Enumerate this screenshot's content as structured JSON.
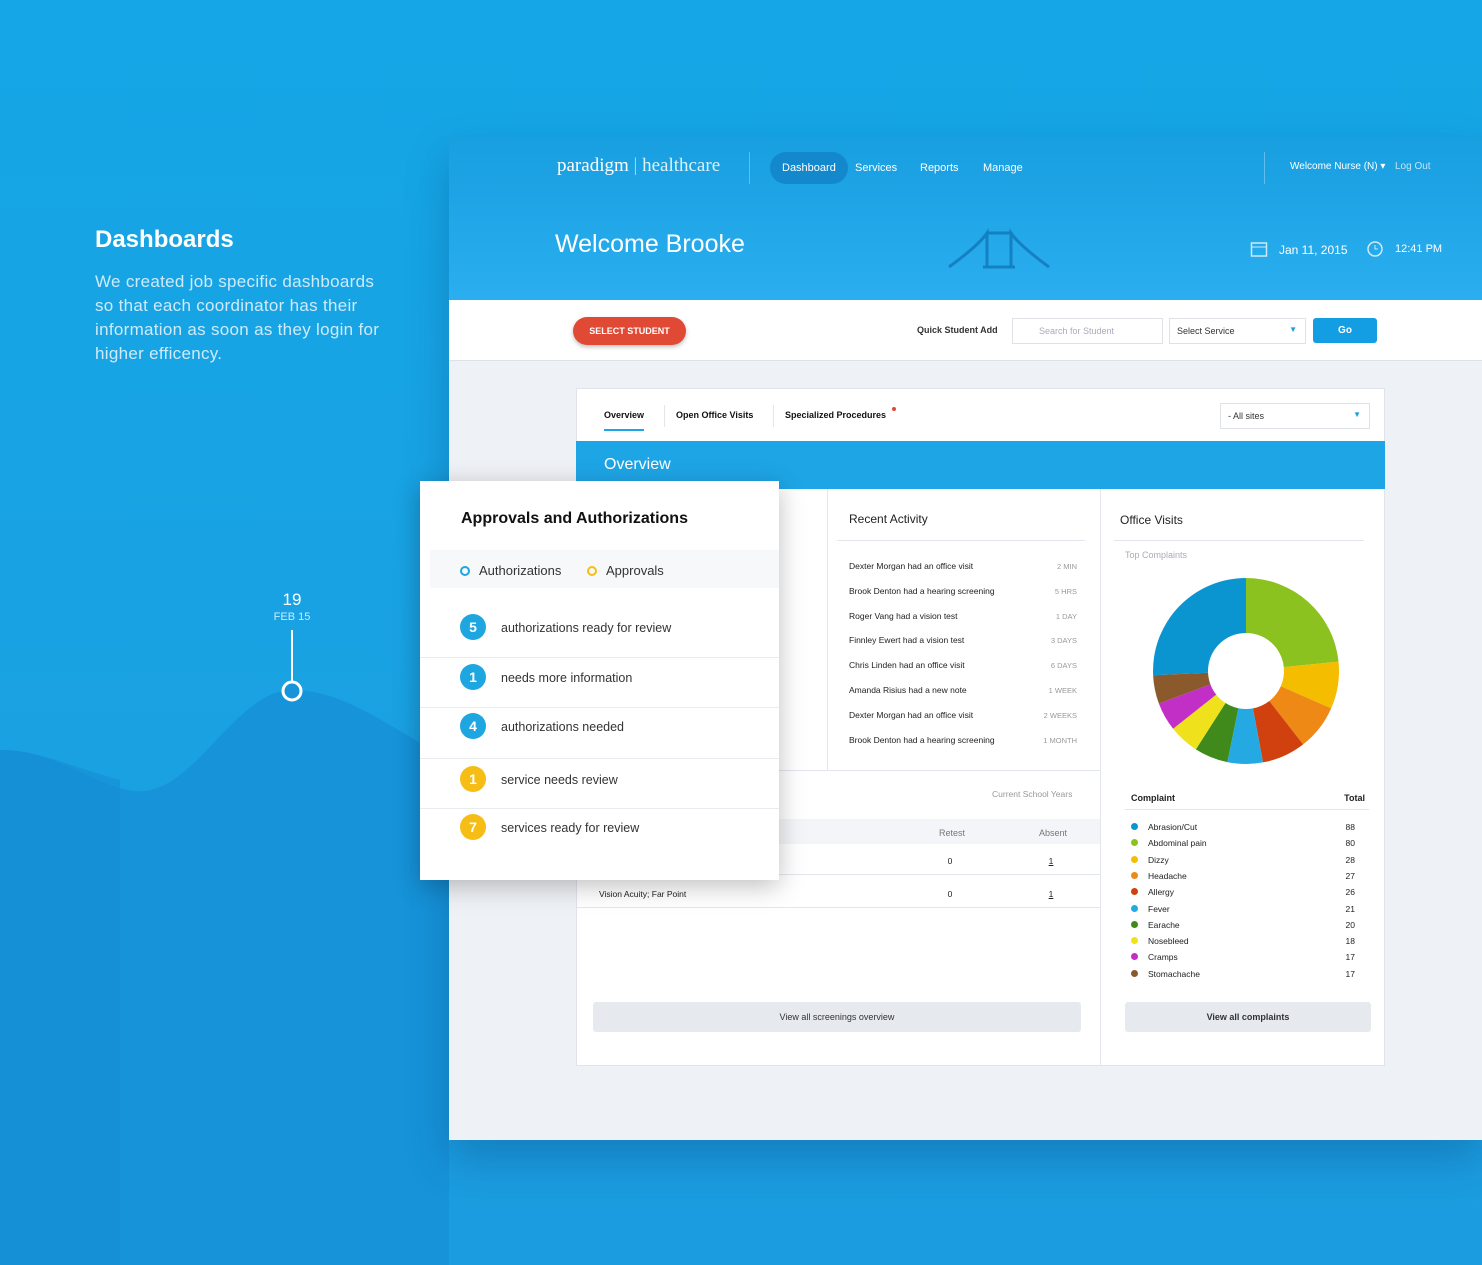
{
  "intro": {
    "title": "Dashboards",
    "text": "We created job specific dashboards so that each coordinator has their information as soon as they login for higher efficency."
  },
  "timeline": {
    "day": "19",
    "date": "FEB 15"
  },
  "nav": {
    "brand": "paradigm",
    "product": "healthcare",
    "items": [
      "Dashboard",
      "Services",
      "Reports",
      "Manage"
    ],
    "user": "Welcome Nurse (N)",
    "logout": "Log Out"
  },
  "hero": {
    "welcome": "Welcome Brooke",
    "date": "Jan 11, 2015",
    "time": "12:41 PM"
  },
  "toolbar": {
    "select_student": "SELECT STUDENT",
    "quick_add": "Quick Student Add",
    "search_placeholder": "Search for Student",
    "service": "Select Service",
    "go": "Go"
  },
  "tabs": {
    "items": [
      "Overview",
      "Open Office Visits",
      "Specialized Procedures"
    ],
    "sites": "- All sites"
  },
  "overview": {
    "title": "Overview"
  },
  "recent_activity": {
    "title": "Recent Activity",
    "items": [
      {
        "text": "Dexter Morgan had an office visit",
        "time": "2 MIN"
      },
      {
        "text": "Brook Denton had a hearing screening",
        "time": "5 HRS"
      },
      {
        "text": "Roger Vang had a vision test",
        "time": "1 DAY"
      },
      {
        "text": "Finnley Ewert had a vision test",
        "time": "3 DAYS"
      },
      {
        "text": "Chris Linden had an office visit",
        "time": "6 DAYS"
      },
      {
        "text": "Amanda Risius had a new note",
        "time": "1 WEEK"
      },
      {
        "text": "Dexter Morgan had an office visit",
        "time": "2 WEEKS"
      },
      {
        "text": "Brook Denton had a hearing screening",
        "time": "1 MONTH"
      }
    ]
  },
  "office_visits": {
    "title": "Office Visits",
    "subtitle": "Top Complaints",
    "columns": [
      "Complaint",
      "Total"
    ],
    "rows": [
      {
        "name": "Abrasion/Cut",
        "total": 88,
        "color": "#0b95d0"
      },
      {
        "name": "Abdominal pain",
        "total": 80,
        "color": "#8cc21f"
      },
      {
        "name": "Dizzy",
        "total": 28,
        "color": "#f5bd00"
      },
      {
        "name": "Headache",
        "total": 27,
        "color": "#ee8916"
      },
      {
        "name": "Allergy",
        "total": 26,
        "color": "#d1410f"
      },
      {
        "name": "Fever",
        "total": 21,
        "color": "#25a9e3"
      },
      {
        "name": "Earache",
        "total": 20,
        "color": "#3f8a1a"
      },
      {
        "name": "Nosebleed",
        "total": 18,
        "color": "#efe21c"
      },
      {
        "name": "Cramps",
        "total": 17,
        "color": "#c22fc6"
      },
      {
        "name": "Stomachache",
        "total": 17,
        "color": "#8a5a2c"
      }
    ],
    "button": "View all complaints"
  },
  "screenings": {
    "period": "Current School Years",
    "columns": [
      "Retest",
      "Absent"
    ],
    "rows": [
      {
        "retest": 0,
        "absent": 1
      },
      {
        "name": "Vision Acuity; Far Point",
        "retest": 0,
        "absent": 1
      }
    ],
    "button": "View all screenings overview"
  },
  "approvals": {
    "title": "Approvals and Authorizations",
    "legend": [
      {
        "label": "Authorizations",
        "color": "#1ea6e0"
      },
      {
        "label": "Approvals",
        "color": "#f5bd16"
      }
    ],
    "items": [
      {
        "count": 5,
        "text": "authorizations ready for review",
        "group": 0
      },
      {
        "count": 1,
        "text": "needs more information",
        "group": 0
      },
      {
        "count": 4,
        "text": "authorizations needed",
        "group": 0
      },
      {
        "count": 1,
        "text": "service needs review",
        "group": 1
      },
      {
        "count": 7,
        "text": "services ready for review",
        "group": 1
      }
    ]
  }
}
